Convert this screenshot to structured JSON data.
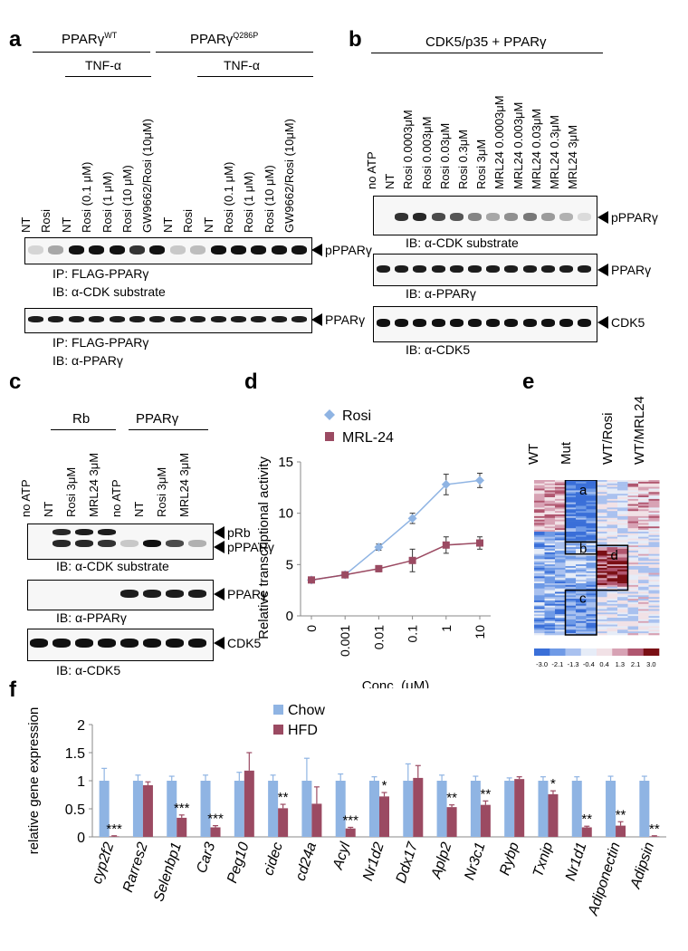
{
  "panels": {
    "a": "a",
    "b": "b",
    "c": "c",
    "d": "d",
    "e": "e",
    "f": "f"
  },
  "panel_a": {
    "group_wt": "PPARγ",
    "group_wt_sup": "WT",
    "group_mut": "PPARγ",
    "group_mut_sup": "Q286P",
    "tnf1": "TNF-α",
    "tnf2": "TNF-α",
    "lanes": [
      "NT",
      "Rosi",
      "NT",
      "Rosi (0.1 μM)",
      "Rosi (1 μM)",
      "Rosi (10 μM)",
      "GW9662/Rosi (10μM)",
      "NT",
      "Rosi",
      "NT",
      "Rosi (0.1 μM)",
      "Rosi (1 μM)",
      "Rosi (10 μM)",
      "GW9662/Rosi (10μM)"
    ],
    "blot1_label": "pPPARγ",
    "blot1_ip": "IP: FLAG-PPARγ",
    "blot1_ib": "IB: α-CDK substrate",
    "blot2_label": "PPARγ",
    "blot2_ip": "IP: FLAG-PPARγ",
    "blot2_ib": "IB: α-PPARγ"
  },
  "panel_b": {
    "title": "CDK5/p35 + PPARγ",
    "lanes": [
      "no ATP",
      "NT",
      "Rosi 0.0003μM",
      "Rosi 0.003μM",
      "Rosi 0.03μM",
      "Rosi 0.3μM",
      "Rosi 3μM",
      "MRL24 0.0003μM",
      "MRL24 0.003μM",
      "MRL24 0.03μM",
      "MRL24 0.3μM",
      "MRL24 3μM"
    ],
    "blot1_label": "pPPARγ",
    "blot1_ib": "IB: α-CDK substrate",
    "blot2_label": "PPARγ",
    "blot2_ib": "IB: α-PPARγ",
    "blot3_label": "CDK5",
    "blot3_ib": "IB: α-CDK5"
  },
  "panel_c": {
    "group1": "Rb",
    "group2": "PPARγ",
    "lanes": [
      "no ATP",
      "NT",
      "Rosi 3μM",
      "MRL24 3μM",
      "no ATP",
      "NT",
      "Rosi 3μM",
      "MRL24 3μM"
    ],
    "blot1_label_a": "pRb",
    "blot1_label_b": "pPPARγ",
    "blot1_ib": "IB: α-CDK substrate",
    "blot2_label": "PPARγ",
    "blot2_ib": "IB: α-PPARγ",
    "blot3_label": "CDK5",
    "blot3_ib": "IB: α-CDK5"
  },
  "panel_e": {
    "cols": [
      "WT",
      "Mut",
      "WT/Rosi",
      "WT/MRL24"
    ],
    "boxes": [
      "a",
      "b",
      "c",
      "d"
    ],
    "scale_ticks": [
      "-3.0",
      "-2.1",
      "-1.3",
      "-0.4",
      "0.4",
      "1.3",
      "2.1",
      "3.0"
    ],
    "scale_colors": [
      "#3a6fd8",
      "#6f9ae6",
      "#a9c1ef",
      "#e6ecf7",
      "#f1e1e6",
      "#d7a2b4",
      "#b0566f",
      "#7a0f14"
    ]
  },
  "chart_data": [
    {
      "type": "line",
      "panel": "d",
      "x_categories": [
        "0",
        "0.001",
        "0.01",
        "0.1",
        "1",
        "10"
      ],
      "xlabel": "Conc. (μM)",
      "ylabel": "Relative transcriptional activity",
      "ylim": [
        0,
        15
      ],
      "yticks": [
        "0",
        "5",
        "10",
        "15"
      ],
      "series": [
        {
          "name": "Rosi",
          "marker": "diamond",
          "color": "#8fb4e3",
          "values": [
            3.5,
            4.0,
            6.7,
            9.5,
            12.8,
            13.2
          ],
          "err": [
            0.2,
            0.2,
            0.3,
            0.5,
            1.0,
            0.7
          ]
        },
        {
          "name": "MRL-24",
          "marker": "square",
          "color": "#9b4a62",
          "values": [
            3.5,
            4.0,
            4.6,
            5.4,
            6.9,
            7.1
          ],
          "err": [
            0.2,
            0.2,
            0.3,
            1.1,
            0.8,
            0.6
          ]
        }
      ]
    },
    {
      "type": "bar",
      "panel": "f",
      "categories": [
        "cyp2f2",
        "Rarres2",
        "Selenbp1",
        "Car3",
        "Peg10",
        "cidec",
        "cd24a",
        "Acyl",
        "Nr1d2",
        "Ddx17",
        "Aplp2",
        "Nr3c1",
        "Rybp",
        "Txnip",
        "Nr1d1",
        "Adiponectin",
        "Adipsin"
      ],
      "ylabel": "relative gene expression",
      "ylim": [
        0,
        2
      ],
      "yticks": [
        "0",
        "0.5",
        "1",
        "1.5",
        "2"
      ],
      "series": [
        {
          "name": "Chow",
          "color": "#8fb4e3",
          "values": [
            1,
            1,
            1,
            1,
            1,
            1,
            1,
            1,
            1,
            1,
            1,
            1,
            1,
            1,
            1,
            1,
            1
          ],
          "err": [
            0.22,
            0.1,
            0.08,
            0.1,
            0.15,
            0.1,
            0.4,
            0.12,
            0.07,
            0.3,
            0.1,
            0.08,
            0.05,
            0.07,
            0.07,
            0.08,
            0.08
          ]
        },
        {
          "name": "HFD",
          "color": "#9b4a62",
          "values": [
            0.01,
            0.92,
            0.34,
            0.17,
            1.18,
            0.51,
            0.59,
            0.15,
            0.72,
            1.05,
            0.53,
            0.57,
            1.03,
            0.76,
            0.17,
            0.2,
            0.01
          ],
          "err": [
            0.01,
            0.06,
            0.05,
            0.03,
            0.32,
            0.07,
            0.3,
            0.02,
            0.07,
            0.22,
            0.04,
            0.07,
            0.04,
            0.06,
            0.02,
            0.07,
            0.01
          ]
        }
      ],
      "significance": [
        "***",
        "",
        "***",
        "***",
        "",
        "**",
        "",
        "***",
        "*",
        "",
        "**",
        "**",
        "",
        "*",
        "**",
        "**",
        "**"
      ]
    }
  ]
}
